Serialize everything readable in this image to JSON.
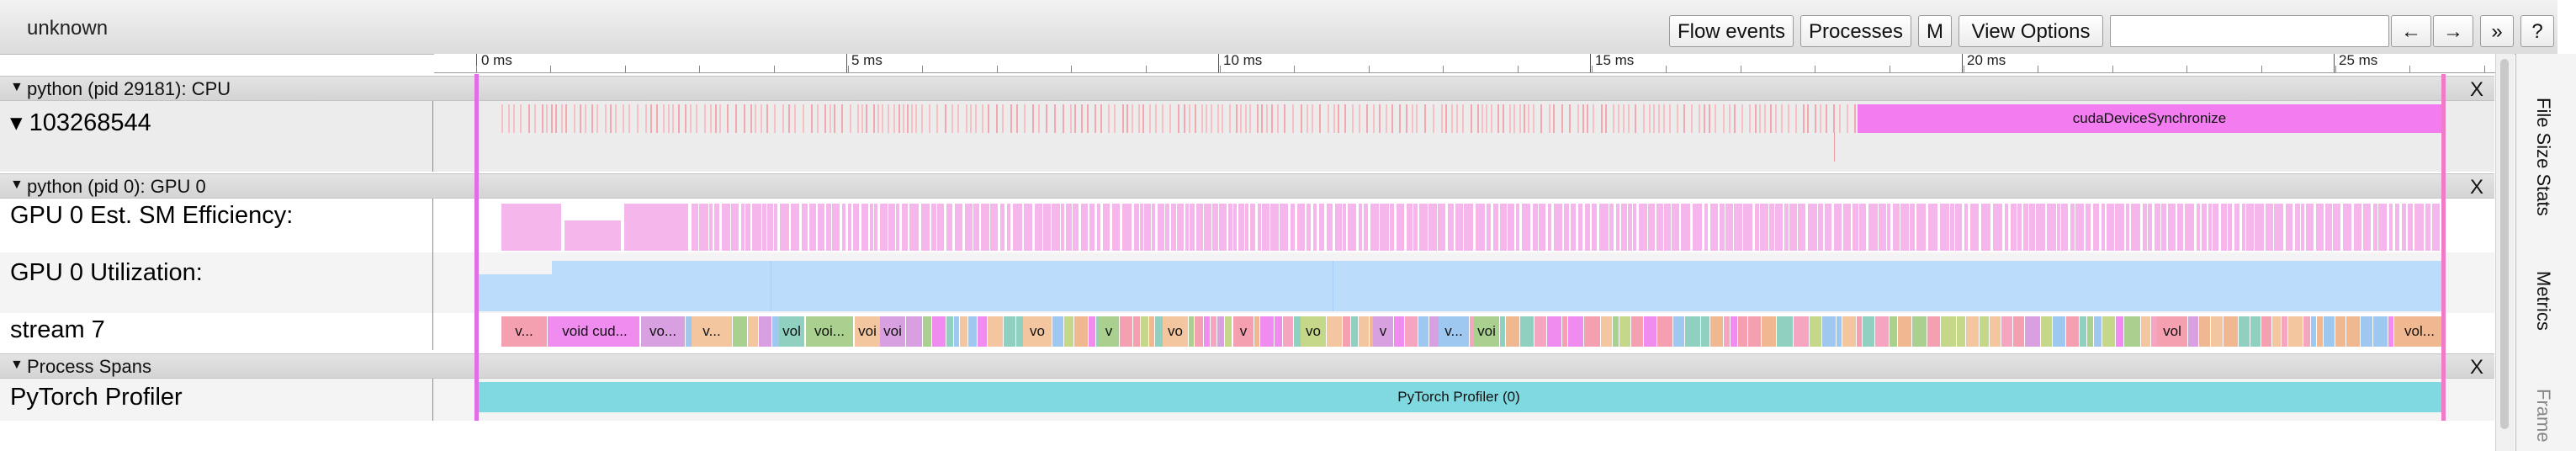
{
  "toolbar": {
    "title": "unknown",
    "buttons": {
      "flow_events": "Flow events",
      "processes": "Processes",
      "m": "M",
      "view_options": "View Options",
      "prev": "←",
      "next": "→",
      "more": "»",
      "help": "?"
    },
    "search_value": ""
  },
  "ruler": {
    "ticks": [
      "0 ms",
      "5 ms",
      "10 ms",
      "15 ms",
      "20 ms",
      "25 ms"
    ]
  },
  "processes": {
    "cpu": {
      "header": "python (pid 29181): CPU",
      "close": "X",
      "thread_label": "▾ 103268544",
      "sync_slice": "cudaDeviceSynchronize"
    },
    "gpu": {
      "header": "python (pid 0): GPU 0",
      "close": "X",
      "sm_efficiency_label": "GPU 0 Est. SM Efficiency:",
      "utilization_label": "GPU 0 Utilization:",
      "stream_label": "stream 7",
      "stream_slices": [
        "v...",
        "void cud...",
        "vo...",
        "v...",
        "vol",
        "voi...",
        "voi",
        "voi",
        "vo",
        "v",
        "vo",
        "v",
        "vo",
        "v",
        "v...",
        "voi",
        "vol",
        "vol..."
      ]
    },
    "spans": {
      "header": "Process Spans",
      "close": "X",
      "track_label": "PyTorch Profiler",
      "span_slice": "PyTorch Profiler (0)"
    }
  },
  "side_tabs": [
    "File Size Stats",
    "Metrics",
    "Frame"
  ],
  "colors": {
    "sync": "#f27cf0",
    "cpu_ticks": "#f3a7ae",
    "sm_efficiency": "#f5b6ec",
    "utilization": "#bcdcfb",
    "span": "#80d8e0",
    "selection": "#e06ee6"
  }
}
